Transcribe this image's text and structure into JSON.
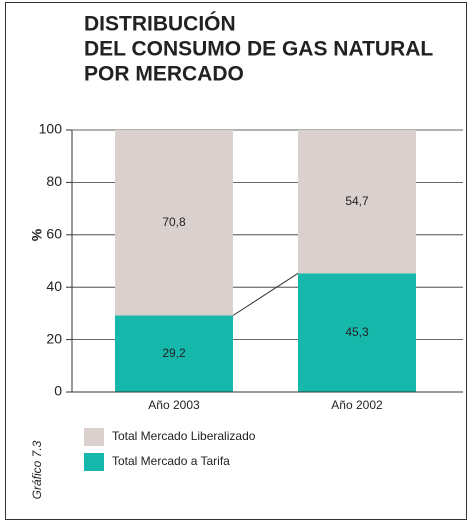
{
  "chart_data": {
    "type": "stacked_bar",
    "title": [
      "DISTRIBUCIÓN",
      "DEL CONSUMO DE GAS NATURAL",
      "POR MERCADO"
    ],
    "ylabel": "%",
    "figure_label": "Gráfico 7.3",
    "categories": [
      "Año 2003",
      "Año 2002"
    ],
    "series": [
      {
        "name": "Total Mercado a Tarifa",
        "color": "#17b8ac",
        "values": [
          29.2,
          45.3
        ],
        "value_labels": [
          "29,2",
          "45,3"
        ]
      },
      {
        "name": "Total Mercado Liberalizado",
        "color": "#dad0cd",
        "values": [
          70.8,
          54.7
        ],
        "value_labels": [
          "70,8",
          "54,7"
        ]
      }
    ],
    "legend_order": [
      1,
      0
    ],
    "ylim": [
      0,
      100
    ],
    "yticks": [
      0,
      20,
      40,
      60,
      80,
      100
    ],
    "grid": true
  }
}
